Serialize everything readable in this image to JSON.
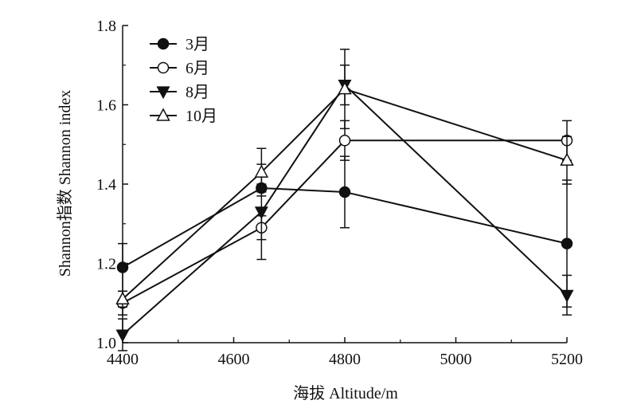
{
  "chart_data": {
    "type": "line",
    "title": "",
    "xlabel": "海拔 Altitude/m",
    "ylabel": "Shannon指数 Shannon index",
    "xlim": [
      4400,
      5200
    ],
    "ylim": [
      1.0,
      1.8
    ],
    "xticks": [
      4400,
      4600,
      4800,
      5000,
      5200
    ],
    "yticks": [
      1.0,
      1.2,
      1.4,
      1.6,
      1.8
    ],
    "xtick_labels": [
      "4400",
      "4600",
      "4800",
      "5000",
      "5200"
    ],
    "ytick_labels": [
      "1.0",
      "1.2",
      "1.4",
      "1.6",
      "1.8"
    ],
    "grid": false,
    "legend_position": "top-left",
    "x": [
      4400,
      4650,
      4800,
      5200
    ],
    "series": [
      {
        "name": "3月",
        "marker": "filled-circle",
        "values": [
          1.19,
          1.39,
          1.38,
          1.25
        ],
        "errors": [
          0.06,
          0.01,
          0.09,
          0.16
        ]
      },
      {
        "name": "6月",
        "marker": "open-circle",
        "values": [
          1.1,
          1.29,
          1.51,
          1.51
        ],
        "errors": [
          0.03,
          0.03,
          0.05,
          0.05
        ]
      },
      {
        "name": "8月",
        "marker": "filled-triangle-down",
        "values": [
          1.02,
          1.33,
          1.65,
          1.12
        ],
        "errors": [
          0.04,
          0.12,
          0.05,
          0.05
        ]
      },
      {
        "name": "10月",
        "marker": "open-triangle-up",
        "values": [
          1.11,
          1.43,
          1.64,
          1.46
        ],
        "errors": [
          0.02,
          0.06,
          0.1,
          0.06
        ]
      }
    ]
  }
}
